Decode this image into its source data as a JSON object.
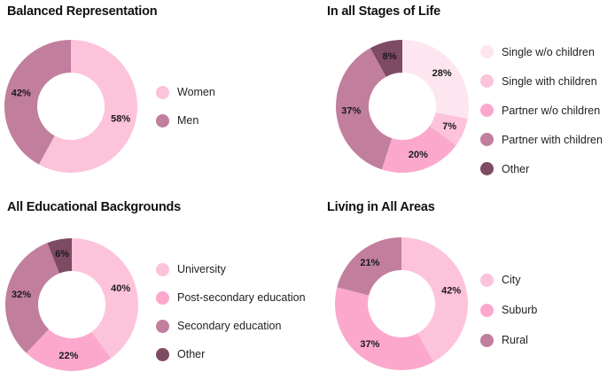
{
  "chart_data": [
    {
      "type": "pie",
      "title": "Balanced Representation",
      "categories": [
        "Women",
        "Men"
      ],
      "values": [
        58,
        42
      ],
      "labels": [
        "58%",
        "42%"
      ],
      "colors": [
        "#fcc3da",
        "#c17e9d"
      ],
      "legend": "right"
    },
    {
      "type": "pie",
      "title": "In all Stages of Life",
      "categories": [
        "Single w/o children",
        "Single with children",
        "Partner w/o children",
        "Partner with children",
        "Other"
      ],
      "values": [
        28,
        7,
        20,
        37,
        8
      ],
      "labels": [
        "28%",
        "7%",
        "20%",
        "37%",
        "8%"
      ],
      "colors": [
        "#fde6ef",
        "#fcc3da",
        "#fba8cc",
        "#c17e9d",
        "#7d4b63"
      ],
      "legend": "right"
    },
    {
      "type": "pie",
      "title": "All Educational Backgrounds",
      "categories": [
        "University",
        "Post-secondary education",
        "Secondary education",
        "Other"
      ],
      "values": [
        40,
        22,
        32,
        6
      ],
      "labels": [
        "40%",
        "22%",
        "32%",
        "6%"
      ],
      "colors": [
        "#fcc3da",
        "#fba8cc",
        "#c17e9d",
        "#7d4b63"
      ],
      "legend": "right"
    },
    {
      "type": "pie",
      "title": "Living in All Areas",
      "categories": [
        "City",
        "Suburb",
        "Rural"
      ],
      "values": [
        42,
        37,
        21
      ],
      "labels": [
        "42%",
        "37%",
        "21%"
      ],
      "colors": [
        "#fcc3da",
        "#fba8cc",
        "#c17e9d"
      ],
      "legend": "right"
    }
  ]
}
